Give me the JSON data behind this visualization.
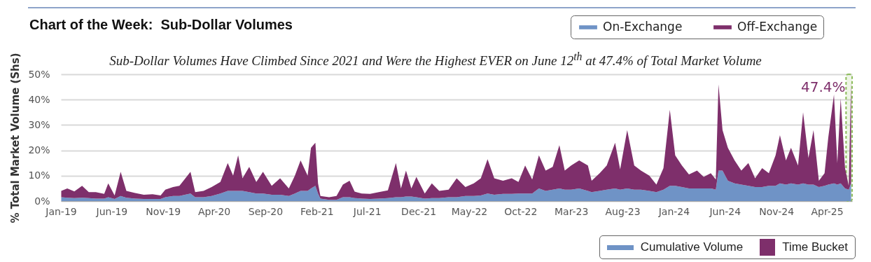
{
  "chart_data": {
    "type": "area",
    "stacked": true,
    "title": "Chart of the Week:  Sub-Dollar Volumes",
    "subtitle": "Sub-Dollar Volumes Have Climbed Since 2021 and Were the Highest EVER on June 12$^{th}$ at 47.4% of Total Market Volume",
    "ylabel": "% Total Market Volume (Shs)",
    "legend": "top right",
    "grid": "y",
    "xlim": [
      "2019-01-01",
      "2025-06-15"
    ],
    "xticks": [
      {
        "value": "2019-01-01",
        "label": "Jan-19"
      },
      {
        "value": "2019-06-01",
        "label": "Jun-19"
      },
      {
        "value": "2019-11-01",
        "label": "Nov-19"
      },
      {
        "value": "2020-04-01",
        "label": "Apr-20"
      },
      {
        "value": "2020-09-01",
        "label": "Sep-20"
      },
      {
        "value": "2021-02-01",
        "label": "Feb-21"
      },
      {
        "value": "2021-07-01",
        "label": "Jul-21"
      },
      {
        "value": "2021-12-01",
        "label": "Dec-21"
      },
      {
        "value": "2022-05-01",
        "label": "May-22"
      },
      {
        "value": "2022-10-01",
        "label": "Oct-22"
      },
      {
        "value": "2023-03-01",
        "label": "Mar-23"
      },
      {
        "value": "2023-08-01",
        "label": "Aug-23"
      },
      {
        "value": "2024-01-01",
        "label": "Jan-24"
      },
      {
        "value": "2024-06-01",
        "label": "Jun-24"
      },
      {
        "value": "2024-11-01",
        "label": "Nov-24"
      },
      {
        "value": "2025-04-01",
        "label": "Apr-25"
      }
    ],
    "ylim": [
      0,
      50
    ],
    "yticks": [
      {
        "value": 0,
        "label": "0%"
      },
      {
        "value": 10,
        "label": "10%"
      },
      {
        "value": 20,
        "label": "20%"
      },
      {
        "value": 30,
        "label": "30%"
      },
      {
        "value": 40,
        "label": "40%"
      },
      {
        "value": 50,
        "label": "50%"
      }
    ],
    "x": [
      "2019-01-02",
      "2019-01-20",
      "2019-02-10",
      "2019-03-05",
      "2019-03-25",
      "2019-04-15",
      "2019-05-10",
      "2019-05-22",
      "2019-06-10",
      "2019-06-28",
      "2019-07-15",
      "2019-08-10",
      "2019-09-05",
      "2019-10-01",
      "2019-10-25",
      "2019-11-08",
      "2019-12-01",
      "2019-12-20",
      "2020-01-22",
      "2020-02-05",
      "2020-03-01",
      "2020-03-25",
      "2020-04-20",
      "2020-05-12",
      "2020-05-28",
      "2020-06-12",
      "2020-06-25",
      "2020-07-15",
      "2020-08-05",
      "2020-08-25",
      "2020-09-20",
      "2020-10-15",
      "2020-11-10",
      "2020-11-28",
      "2020-12-15",
      "2021-01-05",
      "2021-01-15",
      "2021-01-28",
      "2021-02-05",
      "2021-02-12",
      "2021-03-10",
      "2021-04-01",
      "2021-04-20",
      "2021-05-10",
      "2021-05-25",
      "2021-06-15",
      "2021-07-10",
      "2021-08-05",
      "2021-09-01",
      "2021-09-25",
      "2021-10-10",
      "2021-10-25",
      "2021-11-10",
      "2021-11-25",
      "2021-12-20",
      "2022-01-10",
      "2022-02-01",
      "2022-03-01",
      "2022-03-25",
      "2022-04-20",
      "2022-05-15",
      "2022-06-05",
      "2022-06-25",
      "2022-07-15",
      "2022-08-10",
      "2022-09-05",
      "2022-09-25",
      "2022-10-15",
      "2022-11-05",
      "2022-11-25",
      "2022-12-15",
      "2023-01-05",
      "2023-01-25",
      "2023-02-10",
      "2023-03-01",
      "2023-03-25",
      "2023-04-20",
      "2023-05-01",
      "2023-05-25",
      "2023-06-15",
      "2023-07-10",
      "2023-07-25",
      "2023-08-15",
      "2023-09-05",
      "2023-09-25",
      "2023-10-20",
      "2023-11-10",
      "2023-12-01",
      "2023-12-20",
      "2024-01-05",
      "2024-01-25",
      "2024-02-15",
      "2024-03-10",
      "2024-03-30",
      "2024-04-20",
      "2024-05-05",
      "2024-05-13",
      "2024-05-25",
      "2024-06-10",
      "2024-06-30",
      "2024-07-20",
      "2024-08-10",
      "2024-08-30",
      "2024-09-20",
      "2024-10-10",
      "2024-10-30",
      "2024-11-12",
      "2024-11-30",
      "2024-12-15",
      "2025-01-05",
      "2025-01-20",
      "2025-02-05",
      "2025-02-20",
      "2025-03-08",
      "2025-03-25",
      "2025-04-05",
      "2025-04-22",
      "2025-05-02",
      "2025-05-12",
      "2025-05-25",
      "2025-06-05",
      "2025-06-12"
    ],
    "series": [
      {
        "name": "On-Exchange",
        "color": "#6f93c6",
        "values": [
          1.5,
          1.3,
          1.2,
          1.3,
          1.2,
          1.0,
          1.0,
          1.5,
          0.8,
          2.0,
          1.3,
          1.0,
          0.8,
          0.8,
          0.8,
          1.5,
          2.0,
          2.0,
          3.0,
          1.5,
          1.5,
          2.0,
          3.0,
          4.0,
          4.0,
          4.0,
          4.0,
          3.5,
          3.0,
          3.0,
          2.5,
          2.5,
          2.0,
          3.0,
          4.0,
          4.0,
          5.0,
          6.0,
          3.0,
          1.0,
          0.5,
          0.5,
          1.5,
          1.5,
          1.2,
          1.0,
          0.8,
          1.0,
          1.2,
          1.5,
          1.5,
          1.8,
          1.8,
          1.5,
          1.0,
          1.2,
          1.2,
          1.5,
          1.5,
          2.0,
          2.0,
          2.2,
          3.0,
          2.5,
          2.8,
          2.8,
          3.0,
          3.0,
          3.0,
          5.0,
          4.0,
          4.5,
          5.0,
          4.5,
          4.5,
          5.0,
          4.0,
          3.5,
          4.0,
          4.5,
          5.0,
          4.5,
          5.0,
          4.5,
          4.5,
          4.0,
          3.5,
          4.5,
          6.0,
          6.0,
          5.5,
          5.0,
          5.0,
          5.0,
          5.0,
          4.5,
          12.0,
          12.0,
          8.0,
          7.0,
          6.5,
          6.0,
          5.5,
          5.5,
          6.0,
          6.0,
          7.0,
          6.5,
          7.0,
          6.5,
          7.0,
          6.5,
          6.5,
          5.5,
          6.0,
          6.5,
          7.0,
          6.5,
          7.0,
          5.0,
          4.5,
          7.0
        ]
      },
      {
        "name": "Off-Exchange",
        "color": "#7e2f6b",
        "values": [
          2.5,
          3.7,
          2.6,
          4.7,
          2.3,
          2.5,
          1.8,
          5.5,
          1.4,
          9.5,
          2.7,
          2.2,
          1.7,
          1.9,
          1.4,
          3.0,
          3.5,
          4.0,
          8.5,
          2.0,
          2.5,
          3.5,
          4.5,
          11.0,
          6.0,
          14.0,
          5.0,
          10.0,
          4.5,
          8.5,
          3.5,
          6.5,
          3.0,
          7.0,
          12.0,
          6.0,
          16.0,
          17.0,
          4.0,
          1.0,
          1.0,
          1.5,
          5.0,
          6.5,
          2.5,
          2.0,
          2.0,
          2.5,
          3.0,
          13.5,
          3.5,
          10.2,
          3.2,
          8.0,
          2.0,
          5.8,
          2.8,
          3.0,
          7.5,
          3.5,
          5.0,
          6.8,
          13.5,
          6.5,
          5.2,
          6.2,
          4.5,
          11.0,
          5.5,
          13.0,
          8.0,
          9.0,
          17.0,
          7.5,
          9.5,
          11.0,
          10.0,
          4.5,
          7.0,
          9.5,
          18.0,
          8.0,
          23.0,
          9.5,
          7.5,
          6.0,
          3.0,
          8.5,
          30.0,
          12.0,
          8.5,
          5.5,
          7.0,
          4.5,
          6.0,
          4.0,
          34.0,
          16.0,
          13.0,
          9.0,
          5.5,
          9.0,
          3.5,
          7.5,
          5.0,
          12.0,
          19.0,
          9.5,
          14.0,
          7.5,
          28.0,
          10.5,
          21.5,
          2.5,
          5.0,
          18.5,
          35.0,
          8.5,
          33.5,
          8.0,
          1.5,
          40.4
        ]
      }
    ],
    "bands": [
      {
        "axis": "x",
        "from": "2025-05-28",
        "to": "2025-06-15",
        "color": "#8cbc5a"
      }
    ],
    "annotations": [
      {
        "text": "47.4%",
        "x": "2025-06-12",
        "y": 47.4
      },
      "Cumulative Volume",
      "Time Bucket"
    ]
  }
}
